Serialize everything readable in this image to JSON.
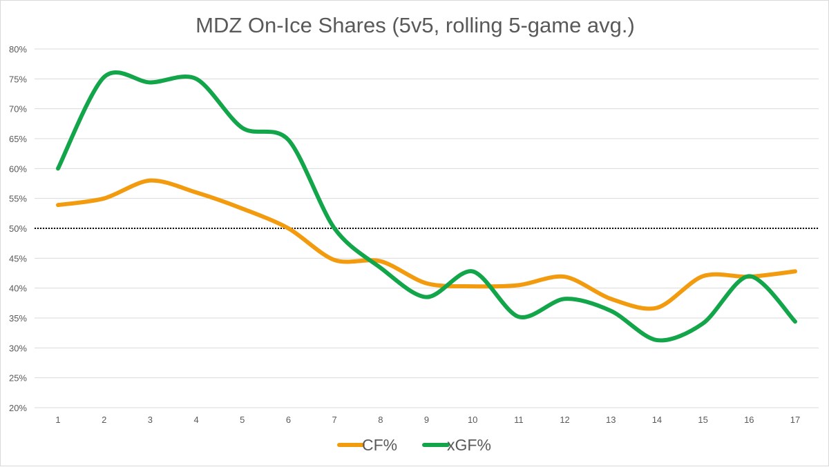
{
  "chart_data": {
    "type": "line",
    "title": "MDZ On-Ice Shares (5v5, rolling 5-game avg.)",
    "categories": [
      "1",
      "2",
      "3",
      "4",
      "5",
      "6",
      "7",
      "8",
      "9",
      "10",
      "11",
      "12",
      "13",
      "14",
      "15",
      "16",
      "17"
    ],
    "y_ticks": [
      "20%",
      "25%",
      "30%",
      "35%",
      "40%",
      "45%",
      "50%",
      "55%",
      "60%",
      "65%",
      "70%",
      "75%",
      "80%"
    ],
    "y_tick_values": [
      20,
      25,
      30,
      35,
      40,
      45,
      50,
      55,
      60,
      65,
      70,
      75,
      80
    ],
    "ylim": [
      20,
      80
    ],
    "reference_line": 50,
    "legend_position": "bottom",
    "series": [
      {
        "name": "CF%",
        "color": "#f29b0f",
        "values": [
          53.9,
          55.0,
          58.0,
          56.0,
          53.3,
          50.0,
          44.7,
          44.5,
          40.8,
          40.3,
          40.5,
          41.9,
          38.2,
          36.7,
          42.0,
          41.9,
          42.8
        ]
      },
      {
        "name": "xGF%",
        "color": "#13a54a",
        "values": [
          60.0,
          75.3,
          74.4,
          75.0,
          66.8,
          64.8,
          50.0,
          43.4,
          38.5,
          42.8,
          35.2,
          38.2,
          36.2,
          31.3,
          34.1,
          42.0,
          34.4
        ]
      }
    ]
  }
}
